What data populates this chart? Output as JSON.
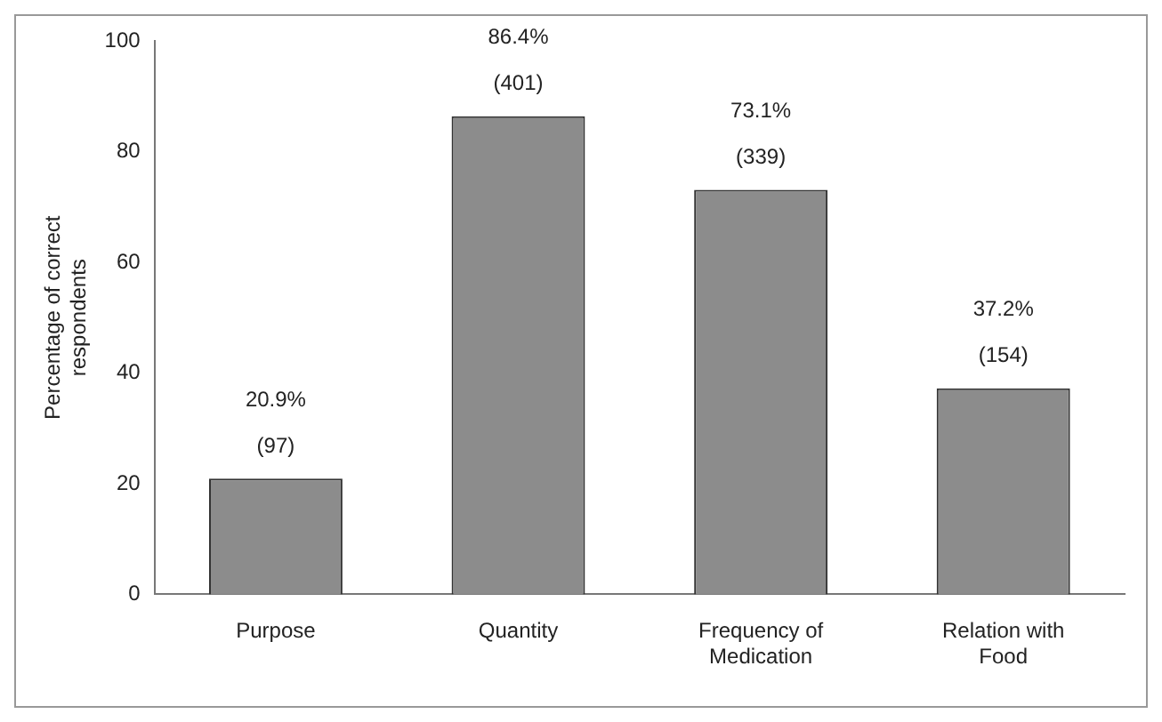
{
  "chart_data": {
    "type": "bar",
    "ylabel": "Percentage of correct respondents",
    "categories": [
      "Purpose",
      "Quantity",
      "Frequency of Medication",
      "Relation with Food"
    ],
    "values": [
      20.9,
      86.4,
      73.1,
      37.2
    ],
    "value_labels": [
      "20.9%\n(97)",
      "86.4%\n(401)",
      "73.1%\n(339)",
      "37.2%\n(154)"
    ],
    "color": "#8c8c8c",
    "ylim": [
      0,
      100
    ],
    "yticks": [
      0,
      20,
      40,
      60,
      80,
      100
    ],
    "grid": false,
    "legend": false
  }
}
